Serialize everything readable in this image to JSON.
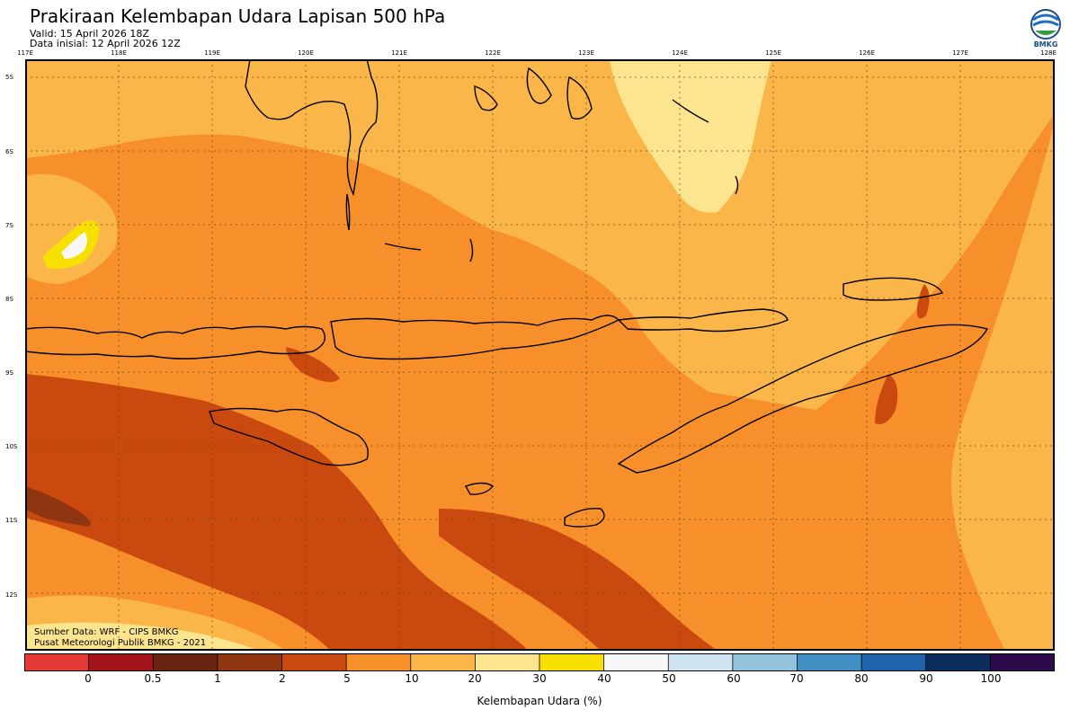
{
  "header": {
    "title": "Prakiraan Kelembapan Udara Lapisan 500 hPa",
    "valid": "Valid: 15 April 2026 18Z",
    "init": "Data inisial: 12 April 2026 12Z",
    "logo_text": "BMKG"
  },
  "axes": {
    "lon_labels": [
      "117E",
      "118E",
      "119E",
      "120E",
      "121E",
      "122E",
      "123E",
      "124E",
      "125E",
      "126E",
      "127E",
      "128E"
    ],
    "lat_labels": [
      "5S",
      "6S",
      "7S",
      "8S",
      "9S",
      "10S",
      "11S",
      "12S"
    ]
  },
  "credits": {
    "source": "Sumber Data: WRF - CIPS BMKG",
    "producer": "Pusat Meteorologi Publik BMKG - 2021"
  },
  "colorbar": {
    "title": "Kelembapan Udara (%)",
    "ticks": [
      "0",
      "0.5",
      "1",
      "2",
      "5",
      "10",
      "20",
      "30",
      "40",
      "50",
      "60",
      "70",
      "80",
      "90",
      "100"
    ],
    "colors": [
      "#e53935",
      "#a3141b",
      "#6b2312",
      "#8f3510",
      "#c9490f",
      "#f7902a",
      "#fbb64a",
      "#fde48f",
      "#f7df00",
      "#f7f7f7",
      "#cfe3f0",
      "#93c4de",
      "#3f8fc2",
      "#1f63aa",
      "#0c2e5f",
      "#2d0a4a"
    ]
  },
  "map_colors": {
    "very_dry": "#8f3510",
    "dry": "#c9490f",
    "moderate": "#f7902a",
    "moist": "#fbb64a",
    "humid": "#fde48f",
    "wet": "#f7df00",
    "saturated": "#f7f7f7"
  }
}
